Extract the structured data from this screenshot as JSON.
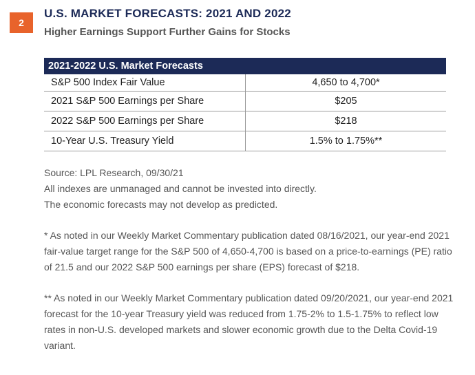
{
  "figure": {
    "number": "2",
    "title": "U.S. MARKET FORECASTS: 2021 AND 2022",
    "subtitle": "Higher Earnings Support Further Gains for Stocks"
  },
  "table": {
    "header": "2021-2022 U.S. Market Forecasts",
    "rows": [
      {
        "label": "S&P 500 Index Fair Value",
        "value": "4,650 to 4,700*"
      },
      {
        "label": "2021 S&P 500 Earnings per Share",
        "value": "$205"
      },
      {
        "label": "2022 S&P 500 Earnings per Share",
        "value": "$218"
      },
      {
        "label": "10-Year U.S. Treasury Yield",
        "value": "1.5% to 1.75%**"
      }
    ]
  },
  "notes": {
    "source": "Source: LPL Research,  09/30/21",
    "disclaimer1": "All indexes are unmanaged and cannot be invested into directly.",
    "disclaimer2": "The economic forecasts may not develop as predicted.",
    "footnote1": "* As noted in our Weekly Market Commentary publication dated 08/16/2021, our year-end 2021 fair-value target range for the S&P 500 of 4,650-4,700 is based on a price-to-earnings (PE) ratio of 21.5 and our 2022 S&P 500 earnings per share (EPS) forecast of $218.",
    "footnote2": "** As noted in our Weekly Market Commentary publication dated 09/20/2021, our year-end 2021 forecast for the 10-year Treasury yield was reduced from 1.75-2% to 1.5-1.75% to reflect low rates in non-U.S. developed markets and slower economic growth due to the Delta Covid-19 variant."
  },
  "colors": {
    "accent": "#e8632b",
    "navy": "#1c2a57"
  }
}
